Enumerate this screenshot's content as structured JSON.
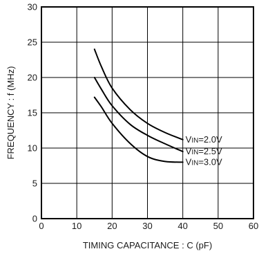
{
  "chart_data": {
    "type": "line",
    "title": "",
    "xlabel": "TIMING  CAPACITANCE : C  (pF)",
    "ylabel": "FREQUENCY : f  (MHz)",
    "xlim": [
      0,
      60
    ],
    "ylim": [
      0,
      30
    ],
    "x_ticks": [
      0,
      10,
      20,
      30,
      40,
      50,
      60
    ],
    "y_ticks": [
      0,
      5,
      10,
      15,
      20,
      25,
      30
    ],
    "grid": true,
    "legend": "none",
    "series": [
      {
        "name": "VIN=2.0V",
        "label_prefix": "V",
        "label_sub": "IN",
        "label_value": "=2.0V",
        "x": [
          15,
          17,
          20,
          25,
          30,
          35,
          40
        ],
        "y": [
          24.0,
          21.5,
          18.5,
          15.5,
          13.5,
          12.2,
          11.2
        ]
      },
      {
        "name": "VIN=2.5V",
        "label_prefix": "V",
        "label_sub": "IN",
        "label_value": "=2.5V",
        "x": [
          15,
          17,
          20,
          25,
          30,
          35,
          40
        ],
        "y": [
          20.0,
          18.3,
          16.0,
          13.4,
          11.8,
          10.6,
          9.5
        ]
      },
      {
        "name": "VIN=3.0V",
        "label_prefix": "V",
        "label_sub": "IN",
        "label_value": "=3.0V",
        "x": [
          15,
          17,
          20,
          25,
          30,
          35,
          40
        ],
        "y": [
          17.2,
          15.8,
          13.5,
          10.7,
          8.8,
          8.1,
          8.0
        ]
      }
    ]
  }
}
